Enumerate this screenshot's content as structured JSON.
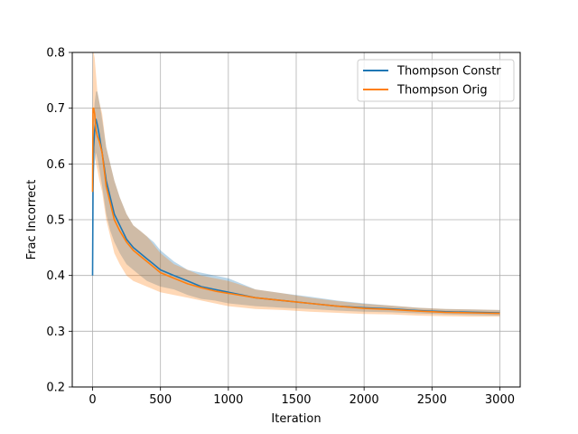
{
  "chart_data": {
    "type": "line",
    "title": "",
    "xlabel": "Iteration",
    "ylabel": "Frac Incorrect",
    "xlim": [
      -150,
      3150
    ],
    "ylim": [
      0.2,
      0.8
    ],
    "xticks": [
      0,
      500,
      1000,
      1500,
      2000,
      2500,
      3000
    ],
    "yticks": [
      0.2,
      0.3,
      0.4,
      0.5,
      0.6,
      0.7,
      0.8
    ],
    "xtick_labels": [
      "0",
      "500",
      "1000",
      "1500",
      "2000",
      "2500",
      "3000"
    ],
    "ytick_labels": [
      "0.2",
      "0.3",
      "0.4",
      "0.5",
      "0.6",
      "0.7",
      "0.8"
    ],
    "grid": true,
    "legend_position": "top-right",
    "series": [
      {
        "name": "Thompson Constr",
        "color": "#1f77b4",
        "x": [
          0,
          3,
          8,
          15,
          25,
          35,
          50,
          70,
          100,
          130,
          160,
          200,
          250,
          300,
          350,
          400,
          450,
          500,
          600,
          700,
          800,
          900,
          1000,
          1200,
          1400,
          1600,
          1800,
          2000,
          2200,
          2400,
          2600,
          2800,
          3000
        ],
        "y": [
          0.4,
          0.55,
          0.63,
          0.66,
          0.68,
          0.67,
          0.65,
          0.62,
          0.57,
          0.54,
          0.51,
          0.49,
          0.465,
          0.45,
          0.44,
          0.43,
          0.42,
          0.41,
          0.4,
          0.39,
          0.38,
          0.375,
          0.37,
          0.36,
          0.355,
          0.35,
          0.345,
          0.342,
          0.34,
          0.337,
          0.335,
          0.334,
          0.333
        ],
        "lower": [
          0.4,
          0.5,
          0.58,
          0.6,
          0.62,
          0.61,
          0.59,
          0.56,
          0.51,
          0.48,
          0.46,
          0.44,
          0.42,
          0.41,
          0.4,
          0.39,
          0.385,
          0.38,
          0.375,
          0.365,
          0.358,
          0.355,
          0.35,
          0.345,
          0.342,
          0.34,
          0.337,
          0.335,
          0.334,
          0.332,
          0.33,
          0.329,
          0.328
        ],
        "upper": [
          0.4,
          0.6,
          0.68,
          0.71,
          0.73,
          0.73,
          0.71,
          0.68,
          0.63,
          0.6,
          0.57,
          0.54,
          0.51,
          0.49,
          0.48,
          0.47,
          0.46,
          0.445,
          0.425,
          0.41,
          0.405,
          0.4,
          0.395,
          0.375,
          0.368,
          0.362,
          0.355,
          0.35,
          0.346,
          0.342,
          0.34,
          0.339,
          0.338
        ]
      },
      {
        "name": "Thompson Orig",
        "color": "#ff7f0e",
        "x": [
          0,
          3,
          8,
          15,
          25,
          35,
          50,
          70,
          100,
          130,
          160,
          200,
          250,
          300,
          350,
          400,
          450,
          500,
          600,
          700,
          800,
          900,
          1000,
          1200,
          1400,
          1600,
          1800,
          2000,
          2200,
          2400,
          2600,
          2800,
          3000
        ],
        "y": [
          0.55,
          0.7,
          0.7,
          0.69,
          0.66,
          0.65,
          0.64,
          0.62,
          0.56,
          0.53,
          0.5,
          0.48,
          0.46,
          0.445,
          0.435,
          0.425,
          0.415,
          0.405,
          0.395,
          0.385,
          0.378,
          0.372,
          0.368,
          0.36,
          0.355,
          0.35,
          0.345,
          0.341,
          0.339,
          0.336,
          0.334,
          0.333,
          0.332
        ],
        "lower": [
          0.5,
          0.6,
          0.62,
          0.62,
          0.6,
          0.59,
          0.57,
          0.55,
          0.5,
          0.47,
          0.44,
          0.42,
          0.4,
          0.39,
          0.385,
          0.38,
          0.375,
          0.37,
          0.365,
          0.36,
          0.355,
          0.35,
          0.345,
          0.34,
          0.338,
          0.335,
          0.333,
          0.331,
          0.33,
          0.328,
          0.327,
          0.326,
          0.326
        ],
        "upper": [
          0.6,
          0.8,
          0.8,
          0.79,
          0.76,
          0.73,
          0.71,
          0.69,
          0.63,
          0.6,
          0.57,
          0.54,
          0.51,
          0.49,
          0.48,
          0.47,
          0.455,
          0.44,
          0.42,
          0.41,
          0.4,
          0.395,
          0.39,
          0.375,
          0.368,
          0.36,
          0.354,
          0.349,
          0.346,
          0.342,
          0.34,
          0.339,
          0.338
        ]
      }
    ]
  }
}
